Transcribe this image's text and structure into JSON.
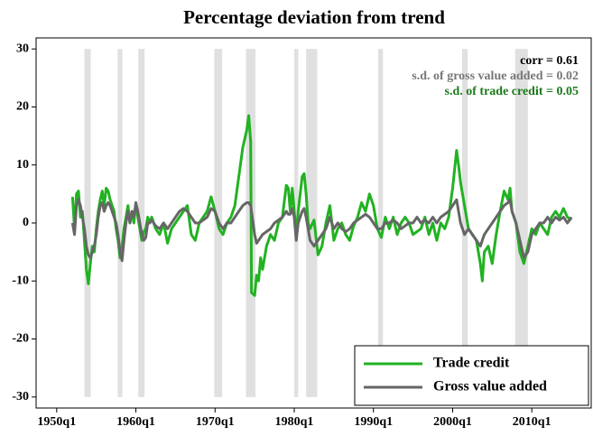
{
  "chart_data": {
    "type": "line",
    "title": "Percentage deviation from trend",
    "x": [
      1952,
      1952.25,
      1952.5,
      1952.75,
      1953,
      1953.25,
      1953.5,
      1953.75,
      1954,
      1954.25,
      1954.5,
      1954.75,
      1955,
      1955.25,
      1955.5,
      1955.75,
      1956,
      1956.25,
      1956.5,
      1956.75,
      1957,
      1957.25,
      1957.5,
      1957.75,
      1958,
      1958.25,
      1958.5,
      1958.75,
      1959,
      1959.25,
      1959.5,
      1959.75,
      1960,
      1960.25,
      1960.5,
      1960.75,
      1961,
      1961.25,
      1961.5,
      1961.75,
      1962,
      1962.5,
      1963,
      1963.5,
      1964,
      1964.5,
      1965,
      1965.5,
      1966,
      1966.5,
      1967,
      1967.5,
      1968,
      1968.5,
      1969,
      1969.5,
      1970,
      1970.5,
      1971,
      1971.5,
      1972,
      1972.5,
      1973,
      1973.5,
      1974,
      1974.25,
      1974.5,
      1974.6,
      1975,
      1975.25,
      1975.5,
      1975.75,
      1976,
      1976.5,
      1977,
      1977.5,
      1978,
      1978.5,
      1979,
      1979.25,
      1979.5,
      1979.75,
      1980,
      1980.25,
      1980.5,
      1981,
      1981.25,
      1981.5,
      1981.75,
      1982,
      1982.5,
      1983,
      1983.5,
      1984,
      1984.5,
      1985,
      1985.5,
      1986,
      1986.5,
      1987,
      1987.5,
      1988,
      1988.5,
      1989,
      1989.5,
      1990,
      1990.5,
      1991,
      1991.5,
      1992,
      1992.5,
      1993,
      1993.5,
      1994,
      1994.5,
      1995,
      1995.5,
      1996,
      1996.5,
      1997,
      1997.5,
      1998,
      1998.5,
      1999,
      1999.5,
      2000,
      2000.5,
      2000.75,
      2001,
      2001.5,
      2002,
      2002.5,
      2003,
      2003.5,
      2003.75,
      2004,
      2004.5,
      2005,
      2005.5,
      2006,
      2006.5,
      2007,
      2007.25,
      2007.5,
      2008,
      2008.5,
      2009,
      2009.5,
      2010,
      2010.5,
      2011,
      2011.5,
      2012,
      2012.5,
      2013,
      2013.5,
      2014,
      2014.5,
      2015
    ],
    "series": [
      {
        "name": "Trade credit",
        "color": "#22b222",
        "values": [
          4.5,
          -1,
          5,
          5.5,
          1,
          2,
          -3,
          -8,
          -10.5,
          -7,
          -4,
          -5,
          -1,
          2,
          4,
          5.5,
          3,
          6,
          5.5,
          4,
          3,
          2,
          -1,
          -3,
          -6,
          -4,
          -1,
          1,
          3,
          0,
          2,
          0,
          3.5,
          1,
          -1,
          -3,
          -1.5,
          -1,
          1,
          0,
          1,
          -1,
          -2,
          0,
          -3.5,
          -1,
          0,
          1,
          2,
          3,
          -2,
          -3,
          0,
          1,
          2,
          4.5,
          2,
          -1,
          -2,
          0,
          1,
          3,
          8,
          13,
          16,
          18.5,
          14,
          -12,
          -12.5,
          -9,
          -10,
          -6,
          -8,
          -4,
          -2,
          -3,
          0,
          1,
          6.5,
          6,
          2,
          6,
          2,
          -2,
          2,
          8,
          8.5,
          5,
          0,
          -1,
          0.5,
          -5.5,
          -4,
          0,
          3,
          -3,
          -1,
          0,
          -2,
          -3,
          -0.5,
          1,
          3.5,
          2,
          5,
          3,
          -1,
          -2.5,
          1,
          -1,
          1,
          -2,
          0,
          1,
          0,
          -2,
          -1.5,
          -1,
          1,
          -2,
          0,
          -3,
          0,
          -1,
          1,
          6,
          12.5,
          10,
          7,
          3,
          -1,
          -2,
          -3,
          -7,
          -10,
          -5,
          -4,
          -7,
          -2,
          2,
          5.5,
          4,
          6,
          2,
          0,
          -5,
          -7,
          -4,
          -1,
          -2,
          0,
          -1,
          -2,
          1,
          2,
          1,
          2.5,
          1,
          0.5
        ]
      },
      {
        "name": "Gross value added",
        "color": "#666666",
        "values": [
          0,
          -2,
          3,
          4,
          3,
          1,
          -1,
          -4,
          -5.5,
          -6,
          -5,
          -4,
          -2,
          1,
          3,
          3.5,
          2,
          3,
          3.5,
          3,
          2,
          1,
          0,
          -2,
          -5,
          -6.5,
          -3,
          0,
          2,
          0,
          2,
          1,
          3.5,
          2,
          0,
          -2,
          -3,
          -2.5,
          0,
          0,
          0.5,
          -0.5,
          -1,
          0,
          -1,
          0,
          1,
          2,
          2.5,
          2,
          1,
          0,
          0,
          0.5,
          1,
          2.5,
          2,
          0,
          -1,
          0,
          0,
          1,
          2,
          3,
          3.5,
          3.5,
          3,
          2,
          -2,
          -3.5,
          -3,
          -2.5,
          -2,
          -1.5,
          -1,
          0,
          0.5,
          1,
          2,
          1.5,
          1.5,
          2.5,
          1,
          -3,
          0,
          2,
          2.5,
          1,
          -1,
          -3,
          -4,
          -3,
          -2,
          -1,
          1,
          -1,
          0,
          -1,
          -1.5,
          -1,
          0,
          0.5,
          1,
          1.5,
          1,
          0,
          -1,
          -1,
          0,
          0,
          0.5,
          0,
          -1,
          -0.5,
          0,
          0,
          1,
          0,
          0.5,
          0,
          1,
          0,
          1,
          1.5,
          2,
          3,
          4,
          2,
          0,
          -2,
          -1,
          -2,
          -3,
          -4,
          -3,
          -2,
          -1,
          0,
          1,
          2,
          3,
          3.5,
          4,
          2,
          0,
          -3,
          -6,
          -5,
          -2,
          -1,
          0,
          0,
          1,
          0,
          1,
          0.5,
          1,
          0,
          1
        ]
      }
    ],
    "recessions": [
      [
        1953.5,
        1954.3
      ],
      [
        1957.7,
        1958.3
      ],
      [
        1960.3,
        1961.1
      ],
      [
        1969.9,
        1970.9
      ],
      [
        1973.9,
        1975.1
      ],
      [
        1980.0,
        1980.5
      ],
      [
        1981.5,
        1982.9
      ],
      [
        1990.6,
        1991.2
      ],
      [
        2001.2,
        2001.9
      ],
      [
        2007.9,
        2009.5
      ]
    ],
    "recession_color": "#e0e0e0",
    "annotations": [
      {
        "text": "corr = 0.61",
        "color": "#000000"
      },
      {
        "text": "s.d. of gross value added = 0.02",
        "color": "#777777"
      },
      {
        "text": "s.d. of trade credit = 0.05",
        "color": "#1a7a1a"
      }
    ],
    "xlim": [
      1947.4,
      2017.5
    ],
    "ylim": [
      -31.9,
      31.9
    ],
    "xticks": [
      {
        "value": 1950,
        "label": "1950q1"
      },
      {
        "value": 1960,
        "label": "1960q1"
      },
      {
        "value": 1970,
        "label": "1970q1"
      },
      {
        "value": 1980,
        "label": "1980q1"
      },
      {
        "value": 1990,
        "label": "1990q1"
      },
      {
        "value": 2000,
        "label": "2000q1"
      },
      {
        "value": 2010,
        "label": "2010q1"
      }
    ],
    "yticks": [
      -30,
      -20,
      -10,
      0,
      10,
      20,
      30
    ],
    "legend": "lower right"
  }
}
